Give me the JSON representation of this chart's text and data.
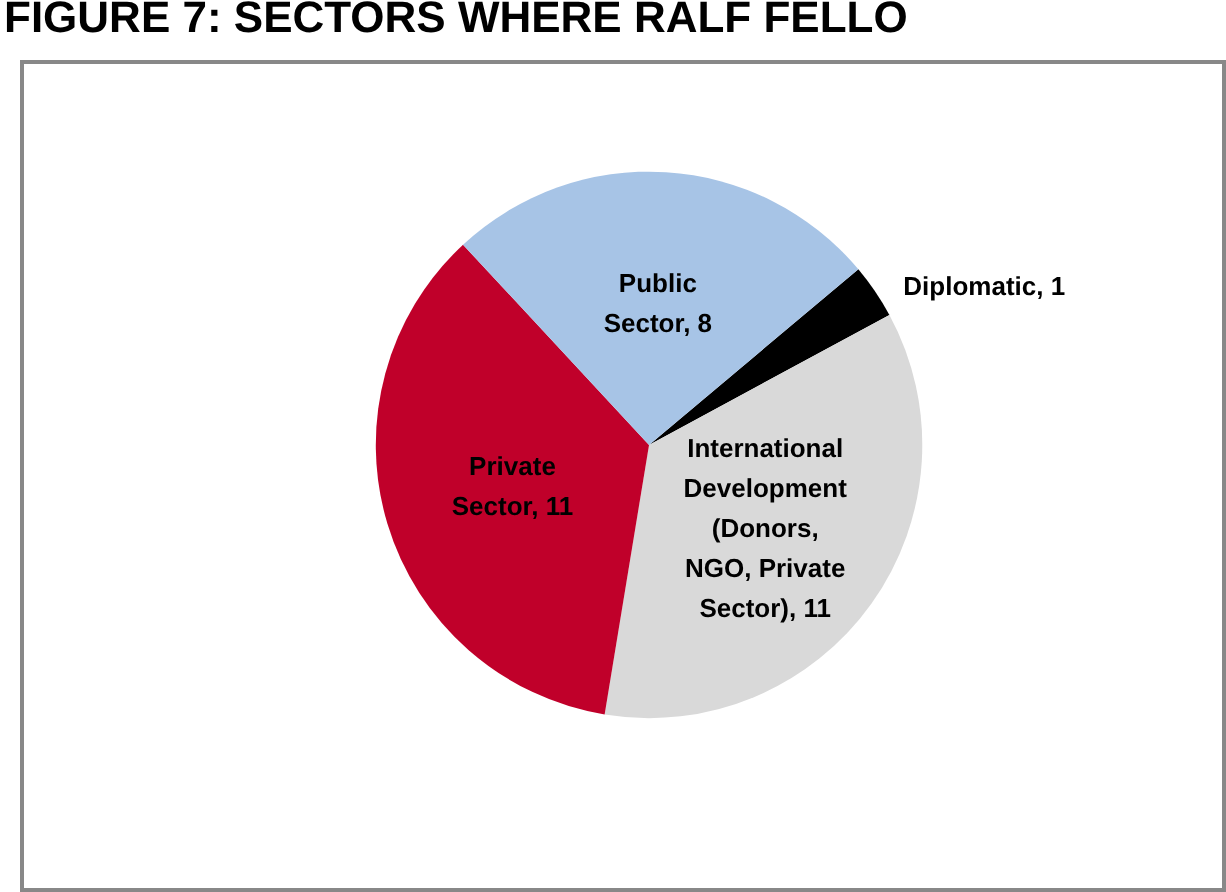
{
  "chart_data": {
    "type": "pie",
    "title": "FIGURE 7: SECTORS WHERE RALF FELLO",
    "categories": [
      "Diplomatic",
      "International Development (Donors, NGO, Private Sector)",
      "Private Sector",
      "Public Sector"
    ],
    "values": [
      1,
      11,
      11,
      8
    ],
    "colors": [
      "#000000",
      "#d9d9d9",
      "#c0002a",
      "#a7c4e6"
    ],
    "value_labels": [
      ", 1",
      ", 11",
      ", 11",
      ", 8"
    ]
  }
}
